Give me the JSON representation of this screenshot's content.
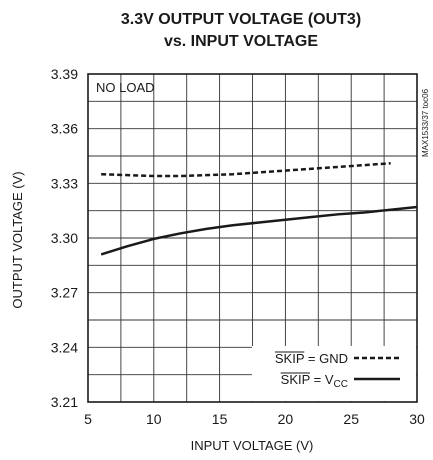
{
  "chart_data": {
    "type": "line",
    "title_line1": "3.3V OUTPUT VOLTAGE (OUT3)",
    "title_line2": "vs. INPUT VOLTAGE",
    "xlabel": "INPUT VOLTAGE (V)",
    "ylabel": "OUTPUT VOLTAGE (V)",
    "xlim": [
      5,
      30
    ],
    "ylim": [
      3.21,
      3.39
    ],
    "x_ticks": [
      "5",
      "10",
      "15",
      "20",
      "25",
      "30"
    ],
    "y_ticks": [
      "3.21",
      "3.24",
      "3.27",
      "3.30",
      "3.33",
      "3.36",
      "3.39"
    ],
    "grid": true,
    "annotation": "NO LOAD",
    "side_label": "MAX1533/37 toc06",
    "legend_position": "bottom-right",
    "series": [
      {
        "name": "SKIP = GND",
        "legend_main": "SKIP",
        "legend_rest": " = GND",
        "style": "dashed",
        "x": [
          6,
          8,
          10,
          12,
          14,
          16,
          18,
          20,
          22,
          24,
          26,
          28
        ],
        "y": [
          3.335,
          3.3345,
          3.334,
          3.334,
          3.3345,
          3.335,
          3.336,
          3.337,
          3.338,
          3.339,
          3.34,
          3.341
        ]
      },
      {
        "name": "SKIP = VCC",
        "legend_main": "SKIP",
        "legend_rest": " = V",
        "legend_sub": "CC",
        "style": "solid",
        "x": [
          6,
          8,
          10,
          12,
          14,
          16,
          18,
          20,
          22,
          24,
          26,
          28,
          30
        ],
        "y": [
          3.291,
          3.2955,
          3.2995,
          3.3025,
          3.305,
          3.307,
          3.3085,
          3.31,
          3.3115,
          3.313,
          3.314,
          3.3155,
          3.317
        ]
      }
    ]
  }
}
